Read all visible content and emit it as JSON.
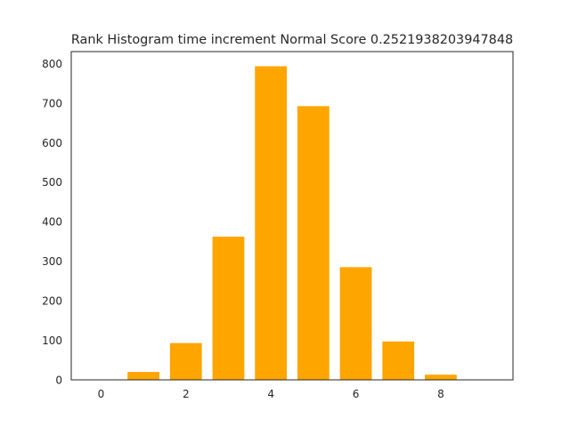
{
  "chart_data": {
    "type": "bar",
    "title": "Rank Histogram time increment Normal Score 0.2521938203947848",
    "xlabel": "",
    "ylabel": "",
    "categories": [
      0,
      1,
      2,
      3,
      4,
      5,
      6,
      7,
      8,
      9
    ],
    "values": [
      0,
      20,
      93,
      362,
      793,
      692,
      285,
      97,
      13,
      0
    ],
    "xlim": [
      -0.7,
      9.7
    ],
    "ylim": [
      0,
      830
    ],
    "xticks": [
      0,
      2,
      4,
      6,
      8
    ],
    "yticks": [
      0,
      100,
      200,
      300,
      400,
      500,
      600,
      700,
      800
    ],
    "bar_width": 0.75,
    "grid": false,
    "colors": {
      "bar": "#ffa500",
      "axis": "#262626",
      "background": "#ffffff"
    }
  }
}
